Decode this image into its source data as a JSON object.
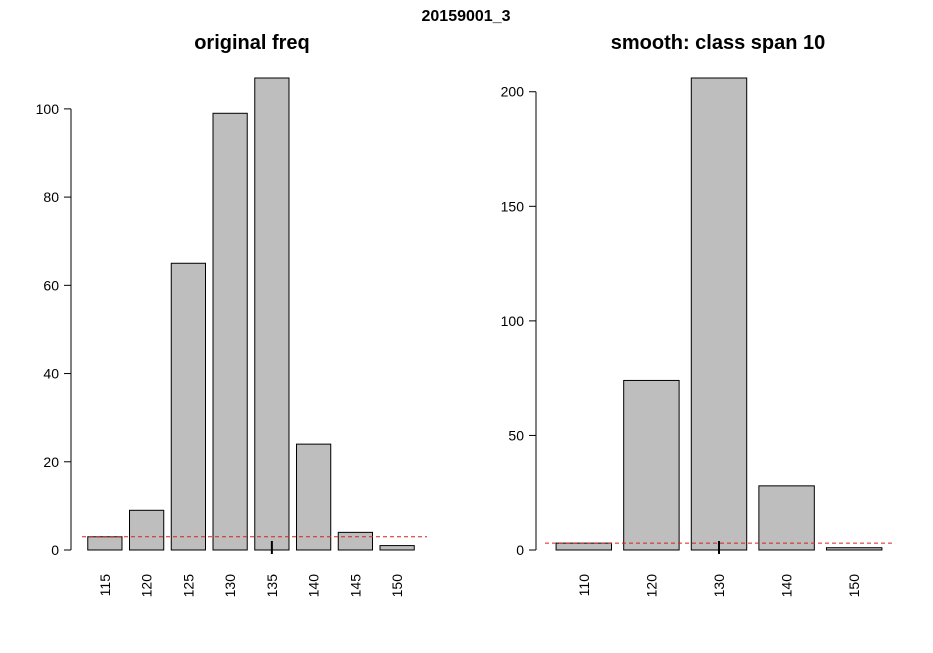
{
  "figure": {
    "title": "20159001_3"
  },
  "chart_data": [
    {
      "type": "bar",
      "title": "original freq",
      "xlabel": "",
      "ylabel": "",
      "categories": [
        "115",
        "120",
        "125",
        "130",
        "135",
        "140",
        "145",
        "150"
      ],
      "values": [
        3,
        9,
        65,
        99,
        107,
        24,
        4,
        1
      ],
      "ylim": [
        0,
        107
      ],
      "yticks": [
        0,
        20,
        40,
        60,
        80,
        100
      ],
      "reference_line": 3,
      "marker_category": "135",
      "grid": false,
      "colors": {
        "bar_fill": "#bebebe",
        "bar_stroke": "#000000",
        "reference_line": "#d62020"
      }
    },
    {
      "type": "bar",
      "title": "smooth: class span 10",
      "xlabel": "",
      "ylabel": "",
      "categories": [
        "110",
        "120",
        "130",
        "140",
        "150"
      ],
      "values": [
        3,
        74,
        206,
        28,
        1
      ],
      "ylim": [
        0,
        206
      ],
      "yticks": [
        0,
        50,
        100,
        150,
        200
      ],
      "reference_line": 3,
      "marker_category": "130",
      "grid": false,
      "colors": {
        "bar_fill": "#bebebe",
        "bar_stroke": "#000000",
        "reference_line": "#d62020"
      }
    }
  ]
}
